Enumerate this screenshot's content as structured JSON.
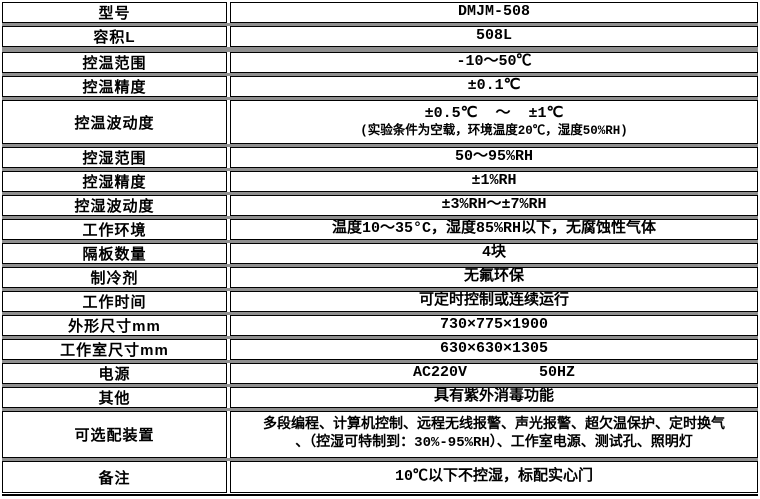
{
  "table": {
    "rows": [
      {
        "label": "型号",
        "value": "DMJM-508"
      },
      {
        "label": "容积L",
        "value": "508L"
      },
      {
        "label": "控温范围",
        "value": "-10～50℃"
      },
      {
        "label": "控温精度",
        "value": "±0.1℃"
      },
      {
        "label": "控温波动度",
        "value": "±0.5℃  ～  ±1℃",
        "note": "(实验条件为空载，环境温度20℃，湿度50%RH)"
      },
      {
        "label": "控湿范围",
        "value": "50～95%RH"
      },
      {
        "label": "控湿精度",
        "value": "±1%RH"
      },
      {
        "label": "控湿波动度",
        "value": "±3%RH～±7%RH"
      },
      {
        "label": "工作环境",
        "value": "温度10～35°C，湿度85%RH以下，无腐蚀性气体"
      },
      {
        "label": "隔板数量",
        "value": "4块"
      },
      {
        "label": "制冷剂",
        "value": "无氟环保"
      },
      {
        "label": "工作时间",
        "value": "可定时控制或连续运行"
      },
      {
        "label": "外形尺寸mm",
        "value": "730×775×1900"
      },
      {
        "label": "工作室尺寸mm",
        "value": "630×630×1305"
      },
      {
        "label": "电源",
        "value": "AC220V        50HZ"
      },
      {
        "label": "其他",
        "value": "具有紫外消毒功能"
      },
      {
        "label": "可选配装置",
        "value": "多段编程、计算机控制、远程无线报警、声光报警、超欠温保护、定时换气\n、（控湿可特制到：30%-95%RH）、工作室电源、测试孔、照明灯"
      },
      {
        "label": "备注",
        "value": "10℃以下不控湿，标配实心门"
      }
    ]
  },
  "colors": {
    "border": "#000000",
    "separator": "#8f8f8f",
    "background": "#ffffff",
    "text": "#000000"
  }
}
